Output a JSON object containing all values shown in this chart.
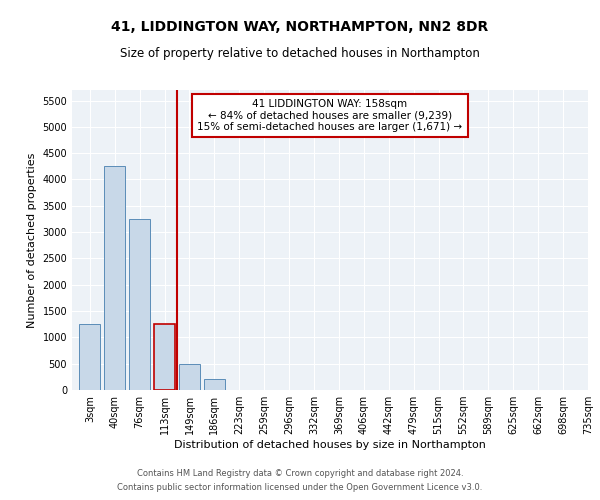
{
  "title": "41, LIDDINGTON WAY, NORTHAMPTON, NN2 8DR",
  "subtitle": "Size of property relative to detached houses in Northampton",
  "xlabel": "Distribution of detached houses by size in Northampton",
  "ylabel": "Number of detached properties",
  "footnote1": "Contains HM Land Registry data © Crown copyright and database right 2024.",
  "footnote2": "Contains public sector information licensed under the Open Government Licence v3.0.",
  "annotation_line1": "41 LIDDINGTON WAY: 158sqm",
  "annotation_line2": "← 84% of detached houses are smaller (9,239)",
  "annotation_line3": "15% of semi-detached houses are larger (1,671) →",
  "bar_categories": [
    "3sqm",
    "40sqm",
    "76sqm",
    "113sqm",
    "149sqm",
    "186sqm",
    "223sqm",
    "259sqm",
    "296sqm",
    "332sqm",
    "369sqm",
    "406sqm",
    "442sqm",
    "479sqm",
    "515sqm",
    "552sqm",
    "589sqm",
    "625sqm",
    "662sqm",
    "698sqm",
    "735sqm"
  ],
  "bar_values": [
    1250,
    4250,
    3250,
    1250,
    500,
    200,
    0,
    0,
    0,
    0,
    0,
    0,
    0,
    0,
    0,
    0,
    0,
    0,
    0,
    0,
    0
  ],
  "bar_color": "#c8d8e8",
  "bar_edgecolor": "#5b8db8",
  "highlight_bar_index": 3,
  "highlight_color": "#c00000",
  "ylim": [
    0,
    5700
  ],
  "yticks": [
    0,
    500,
    1000,
    1500,
    2000,
    2500,
    3000,
    3500,
    4000,
    4500,
    5000,
    5500
  ],
  "background_color": "#edf2f7",
  "title_fontsize": 10,
  "subtitle_fontsize": 8.5,
  "axis_label_fontsize": 8,
  "tick_fontsize": 7,
  "footnote_fontsize": 6,
  "annotation_fontsize": 7.5
}
